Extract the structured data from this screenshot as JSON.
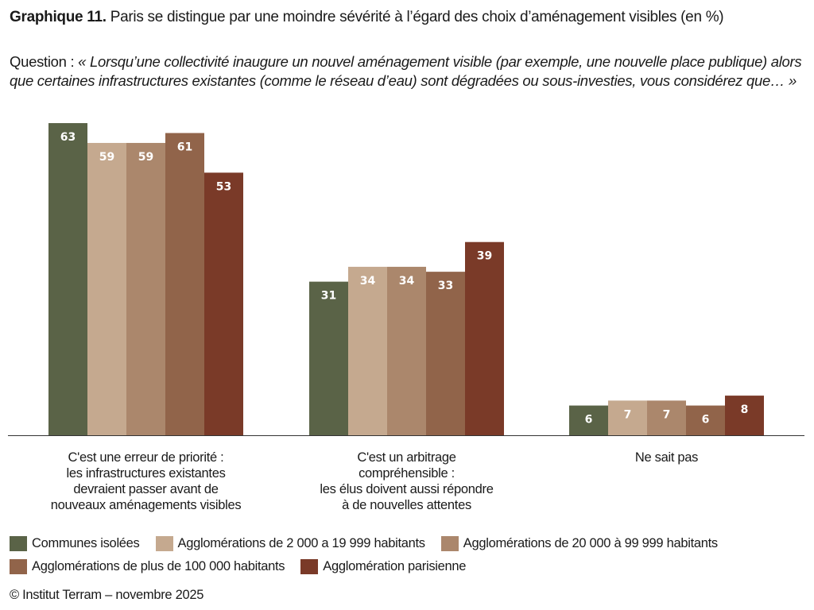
{
  "header": {
    "title_bold": "Graphique 11.",
    "title_rest": " Paris se distingue par une moindre sévérité à l’égard des choix d’aménagement visibles (en %)",
    "question_prefix": "Question : ",
    "question_text": "« Lorsqu’une collectivité inaugure un nouvel aménagement visible (par exemple, une nouvelle place publique) alors que certaines infrastructures existantes (comme le réseau d’eau) sont dégradées ou sous-investies, vous considérez que… »"
  },
  "footer": {
    "source": "© Institut Terram – novembre 2025"
  },
  "chart_data": {
    "type": "bar",
    "title": "Paris se distingue par une moindre sévérité à l’égard des choix d’aménagement visibles (en %)",
    "xlabel": "",
    "ylabel": "",
    "ylim": [
      0,
      63
    ],
    "grid": false,
    "legend_position": "bottom",
    "categories": [
      "C'est une erreur de priorité :\nles infrastructures existantes\ndevraient passer avant de\nnouveaux aménagements visibles",
      "C'est un arbitrage\ncompréhensible  :\nles élus doivent aussi répondre\nà de nouvelles attentes",
      "Ne sait pas"
    ],
    "series": [
      {
        "name": "Communes isolées",
        "color": "#5a6347",
        "values": [
          63,
          31,
          6
        ]
      },
      {
        "name": "Agglomérations de 2 000 a 19 999 habitants",
        "color": "#c5a98f",
        "values": [
          59,
          34,
          7
        ]
      },
      {
        "name": "Agglomérations de 20 000 à 99 999 habitants",
        "color": "#ab876c",
        "values": [
          59,
          34,
          7
        ]
      },
      {
        "name": "Agglomérations de plus de 100 000 habitants",
        "color": "#91644a",
        "values": [
          61,
          33,
          6
        ]
      },
      {
        "name": "Agglomération parisienne",
        "color": "#7a3a28",
        "values": [
          53,
          39,
          8
        ]
      }
    ]
  }
}
